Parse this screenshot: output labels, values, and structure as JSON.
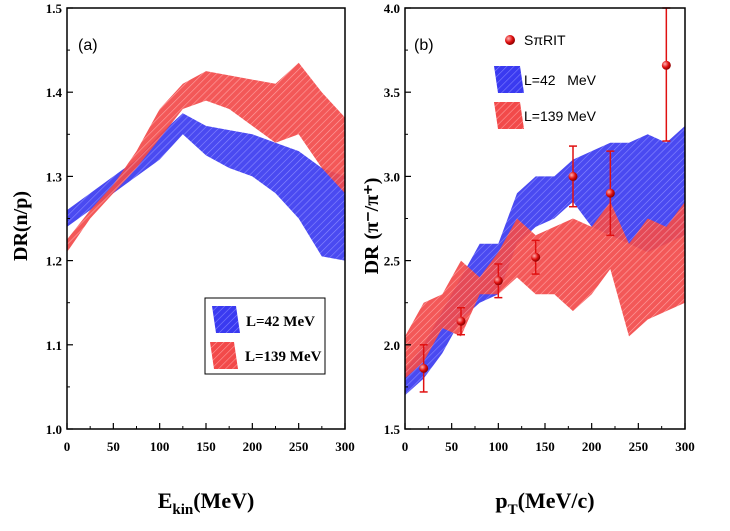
{
  "chart_data": [
    {
      "type": "area",
      "panel_label": "(a)",
      "xlabel": "E",
      "xlabel_sub": "kin",
      "xlabel_unit": "(MeV)",
      "ylabel": "DR(n/p)",
      "xlim": [
        0,
        300
      ],
      "ylim": [
        1.0,
        1.5
      ],
      "xticks": [
        "0",
        "50",
        "100",
        "150",
        "200",
        "250",
        "300"
      ],
      "yticks": [
        "1.0",
        "1.1",
        "1.2",
        "1.3",
        "1.4",
        "1.5"
      ],
      "legend_position": "lower-right",
      "series": [
        {
          "name": "L=42 MeV",
          "color": "#2020ee",
          "x": [
            0,
            25,
            50,
            75,
            100,
            125,
            150,
            175,
            200,
            225,
            250,
            275,
            300
          ],
          "lower": [
            1.24,
            1.26,
            1.28,
            1.3,
            1.32,
            1.35,
            1.325,
            1.31,
            1.3,
            1.28,
            1.25,
            1.205,
            1.2
          ],
          "upper": [
            1.26,
            1.28,
            1.3,
            1.32,
            1.35,
            1.375,
            1.36,
            1.355,
            1.35,
            1.34,
            1.33,
            1.31,
            1.3
          ]
        },
        {
          "name": "L=139 MeV",
          "color": "#f04040",
          "x": [
            0,
            25,
            50,
            75,
            100,
            125,
            150,
            175,
            200,
            225,
            250,
            275,
            300
          ],
          "lower": [
            1.21,
            1.25,
            1.28,
            1.31,
            1.345,
            1.38,
            1.39,
            1.38,
            1.36,
            1.34,
            1.35,
            1.31,
            1.28
          ],
          "upper": [
            1.225,
            1.26,
            1.29,
            1.33,
            1.38,
            1.41,
            1.425,
            1.42,
            1.415,
            1.41,
            1.435,
            1.4,
            1.37
          ]
        }
      ]
    },
    {
      "type": "area",
      "panel_label": "(b)",
      "xlabel": "p",
      "xlabel_sub": "T",
      "xlabel_unit": "(MeV/c)",
      "ylabel": "DR",
      "ylabel_ratio": "(π⁻/π⁺)",
      "xlim": [
        0,
        300
      ],
      "ylim": [
        1.5,
        4.0
      ],
      "xticks": [
        "0",
        "50",
        "100",
        "150",
        "200",
        "250",
        "300"
      ],
      "yticks": [
        "1.5",
        "2.0",
        "2.5",
        "3.0",
        "3.5",
        "4.0"
      ],
      "legend_position": "top",
      "series": [
        {
          "name": "L=42   MeV",
          "color": "#2020ee",
          "x": [
            0,
            20,
            40,
            60,
            80,
            100,
            120,
            140,
            160,
            180,
            200,
            220,
            240,
            260,
            280,
            300
          ],
          "lower": [
            1.7,
            1.8,
            1.95,
            2.15,
            2.25,
            2.3,
            2.6,
            2.7,
            2.75,
            2.85,
            2.7,
            2.65,
            2.6,
            2.55,
            2.6,
            2.65
          ],
          "upper": [
            1.85,
            2.0,
            2.2,
            2.4,
            2.6,
            2.6,
            2.9,
            3.0,
            3.0,
            3.1,
            3.15,
            3.2,
            3.2,
            3.25,
            3.2,
            3.3
          ]
        },
        {
          "name": "L=139 MeV",
          "color": "#f04040",
          "x": [
            0,
            20,
            40,
            60,
            80,
            100,
            120,
            140,
            160,
            180,
            200,
            220,
            240,
            260,
            280,
            300
          ],
          "lower": [
            1.8,
            1.9,
            2.1,
            2.05,
            2.3,
            2.3,
            2.4,
            2.3,
            2.3,
            2.2,
            2.3,
            2.45,
            2.05,
            2.15,
            2.2,
            2.25
          ],
          "upper": [
            2.05,
            2.25,
            2.3,
            2.5,
            2.4,
            2.55,
            2.75,
            2.65,
            2.7,
            2.75,
            2.7,
            2.85,
            2.6,
            2.75,
            2.7,
            2.85
          ]
        },
        {
          "name": "SπRIT",
          "type": "scatter",
          "color": "#e01010",
          "x": [
            20,
            60,
            100,
            140,
            180,
            220,
            280
          ],
          "y": [
            1.86,
            2.14,
            2.38,
            2.52,
            3.0,
            2.9,
            3.66
          ],
          "yerr_low": [
            0.14,
            0.08,
            0.1,
            0.1,
            0.18,
            0.25,
            0.45
          ],
          "yerr_high": [
            0.14,
            0.08,
            0.1,
            0.1,
            0.18,
            0.25,
            0.45
          ]
        }
      ]
    }
  ]
}
